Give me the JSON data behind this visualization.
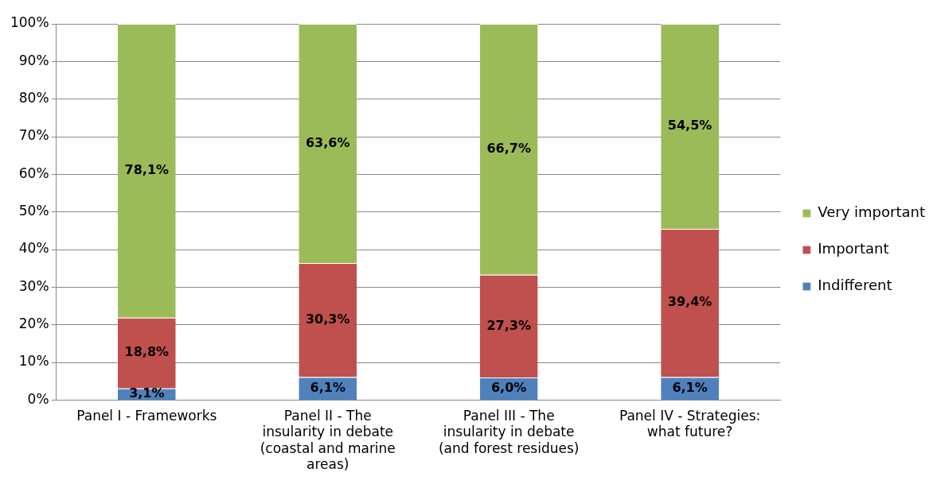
{
  "chart_data": {
    "type": "bar",
    "stacked": true,
    "categories": [
      "Panel I - Frameworks",
      "Panel II - The insularity in debate (coastal and marine areas)",
      "Panel III - The insularity in debate (and forest residues)",
      "Panel IV - Strategies: what future?"
    ],
    "series": [
      {
        "name": "Indifferent",
        "color": "#4f81bd",
        "values": [
          3.1,
          6.1,
          6.0,
          6.1
        ],
        "value_labels": [
          "3,1%",
          "6,1%",
          "6,0%",
          "6,1%"
        ]
      },
      {
        "name": "Important",
        "color": "#c0504d",
        "values": [
          18.8,
          30.3,
          27.3,
          39.4
        ],
        "value_labels": [
          "18,8%",
          "30,3%",
          "27,3%",
          "39,4%"
        ]
      },
      {
        "name": "Very important",
        "color": "#9bbb59",
        "values": [
          78.1,
          63.6,
          66.7,
          54.5
        ],
        "value_labels": [
          "78,1%",
          "63,6%",
          "66,7%",
          "54,5%"
        ]
      }
    ],
    "ylim": [
      0,
      100
    ],
    "yticks": [
      {
        "value": 0,
        "label": "0%"
      },
      {
        "value": 10,
        "label": "10%"
      },
      {
        "value": 20,
        "label": "20%"
      },
      {
        "value": 30,
        "label": "30%"
      },
      {
        "value": 40,
        "label": "40%"
      },
      {
        "value": 50,
        "label": "50%"
      },
      {
        "value": 60,
        "label": "60%"
      },
      {
        "value": 70,
        "label": "70%"
      },
      {
        "value": 80,
        "label": "80%"
      },
      {
        "value": 90,
        "label": "90%"
      },
      {
        "value": 100,
        "label": "100%"
      }
    ],
    "grid": "y",
    "legend": "right"
  }
}
